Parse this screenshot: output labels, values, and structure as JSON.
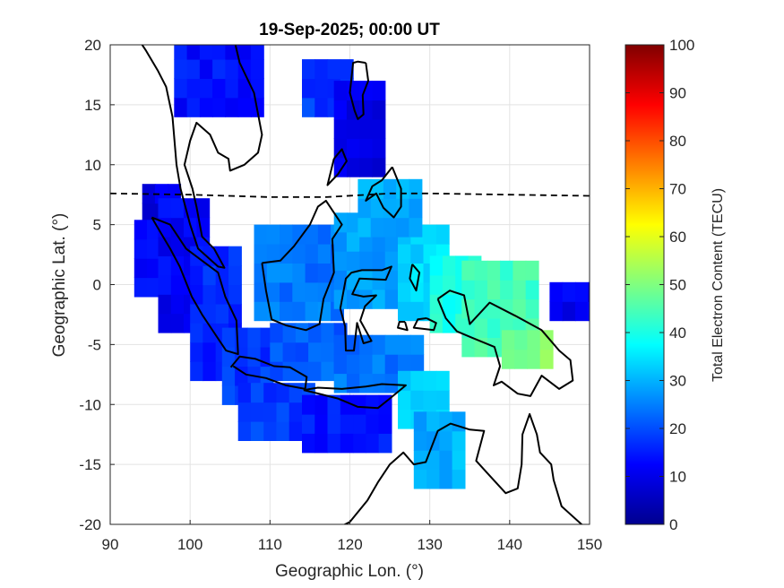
{
  "chart_data": {
    "type": "heatmap",
    "title": "19-Sep-2025; 00:00 UT",
    "xlabel": "Geographic Lon. (°)",
    "ylabel": "Geographic Lat. (°)",
    "xlim": [
      90,
      150
    ],
    "ylim": [
      -20,
      20
    ],
    "xticks": [
      "90",
      "100",
      "110",
      "120",
      "130",
      "140",
      "150"
    ],
    "yticks": [
      "20",
      "15",
      "10",
      "5",
      "0",
      "-5",
      "-10",
      "-15",
      "-20"
    ],
    "grid": true,
    "colorbar": {
      "label": "Total Electron Content (TECU)",
      "range": [
        0,
        100
      ],
      "ticks": [
        "0",
        "10",
        "20",
        "30",
        "40",
        "50",
        "60",
        "70",
        "80",
        "90",
        "100"
      ],
      "colormap": "jet"
    },
    "magnetic_equator_lat": [
      [
        90,
        7.6
      ],
      [
        100,
        7.5
      ],
      [
        110,
        7.3
      ],
      [
        117,
        7.3
      ],
      [
        125,
        7.6
      ],
      [
        130,
        7.6
      ],
      [
        140,
        7.5
      ],
      [
        150,
        7.4
      ]
    ],
    "tec_regions": [
      {
        "lon": [
          94,
          98
        ],
        "lat": [
          2,
          8
        ],
        "tec": 10
      },
      {
        "lon": [
          93,
          96
        ],
        "lat": [
          -1,
          4
        ],
        "tec": 14
      },
      {
        "lon": [
          96,
          102
        ],
        "lat": [
          -4,
          6
        ],
        "tec": 12
      },
      {
        "lon": [
          100,
          106
        ],
        "lat": [
          -8,
          2
        ],
        "tec": 16
      },
      {
        "lon": [
          104,
          110
        ],
        "lat": [
          -10,
          -4
        ],
        "tec": 18
      },
      {
        "lon": [
          106,
          114
        ],
        "lat": [
          -13,
          -9
        ],
        "tec": 18
      },
      {
        "lon": [
          114,
          124
        ],
        "lat": [
          -14,
          -10
        ],
        "tec": 15
      },
      {
        "lon": [
          110,
          118
        ],
        "lat": [
          -8,
          -4
        ],
        "tec": 22
      },
      {
        "lon": [
          118,
          128
        ],
        "lat": [
          -9,
          -5
        ],
        "tec": 24
      },
      {
        "lon": [
          108,
          118
        ],
        "lat": [
          -3,
          4
        ],
        "tec": 24
      },
      {
        "lon": [
          118,
          126
        ],
        "lat": [
          -2,
          5
        ],
        "tec": 28
      },
      {
        "lon": [
          126,
          132
        ],
        "lat": [
          -3,
          4
        ],
        "tec": 34
      },
      {
        "lon": [
          130,
          136
        ],
        "lat": [
          -4,
          2
        ],
        "tec": 40
      },
      {
        "lon": [
          134,
          142
        ],
        "lat": [
          -6,
          1
        ],
        "tec": 44
      },
      {
        "lon": [
          139,
          144
        ],
        "lat": [
          -7,
          -4
        ],
        "tec": 50
      },
      {
        "lon": [
          126,
          132
        ],
        "lat": [
          -12,
          -8
        ],
        "tec": 34
      },
      {
        "lon": [
          128,
          134
        ],
        "lat": [
          -17,
          -12
        ],
        "tec": 30
      },
      {
        "lon": [
          98,
          108
        ],
        "lat": [
          14,
          20
        ],
        "tec": 14
      },
      {
        "lon": [
          114,
          120
        ],
        "lat": [
          14,
          18
        ],
        "tec": 18
      },
      {
        "lon": [
          118,
          124
        ],
        "lat": [
          9,
          16
        ],
        "tec": 10
      },
      {
        "lon": [
          121,
          128
        ],
        "lat": [
          4,
          8
        ],
        "tec": 30
      },
      {
        "lon": [
          145,
          150
        ],
        "lat": [
          -3,
          0
        ],
        "tec": 12
      }
    ]
  }
}
